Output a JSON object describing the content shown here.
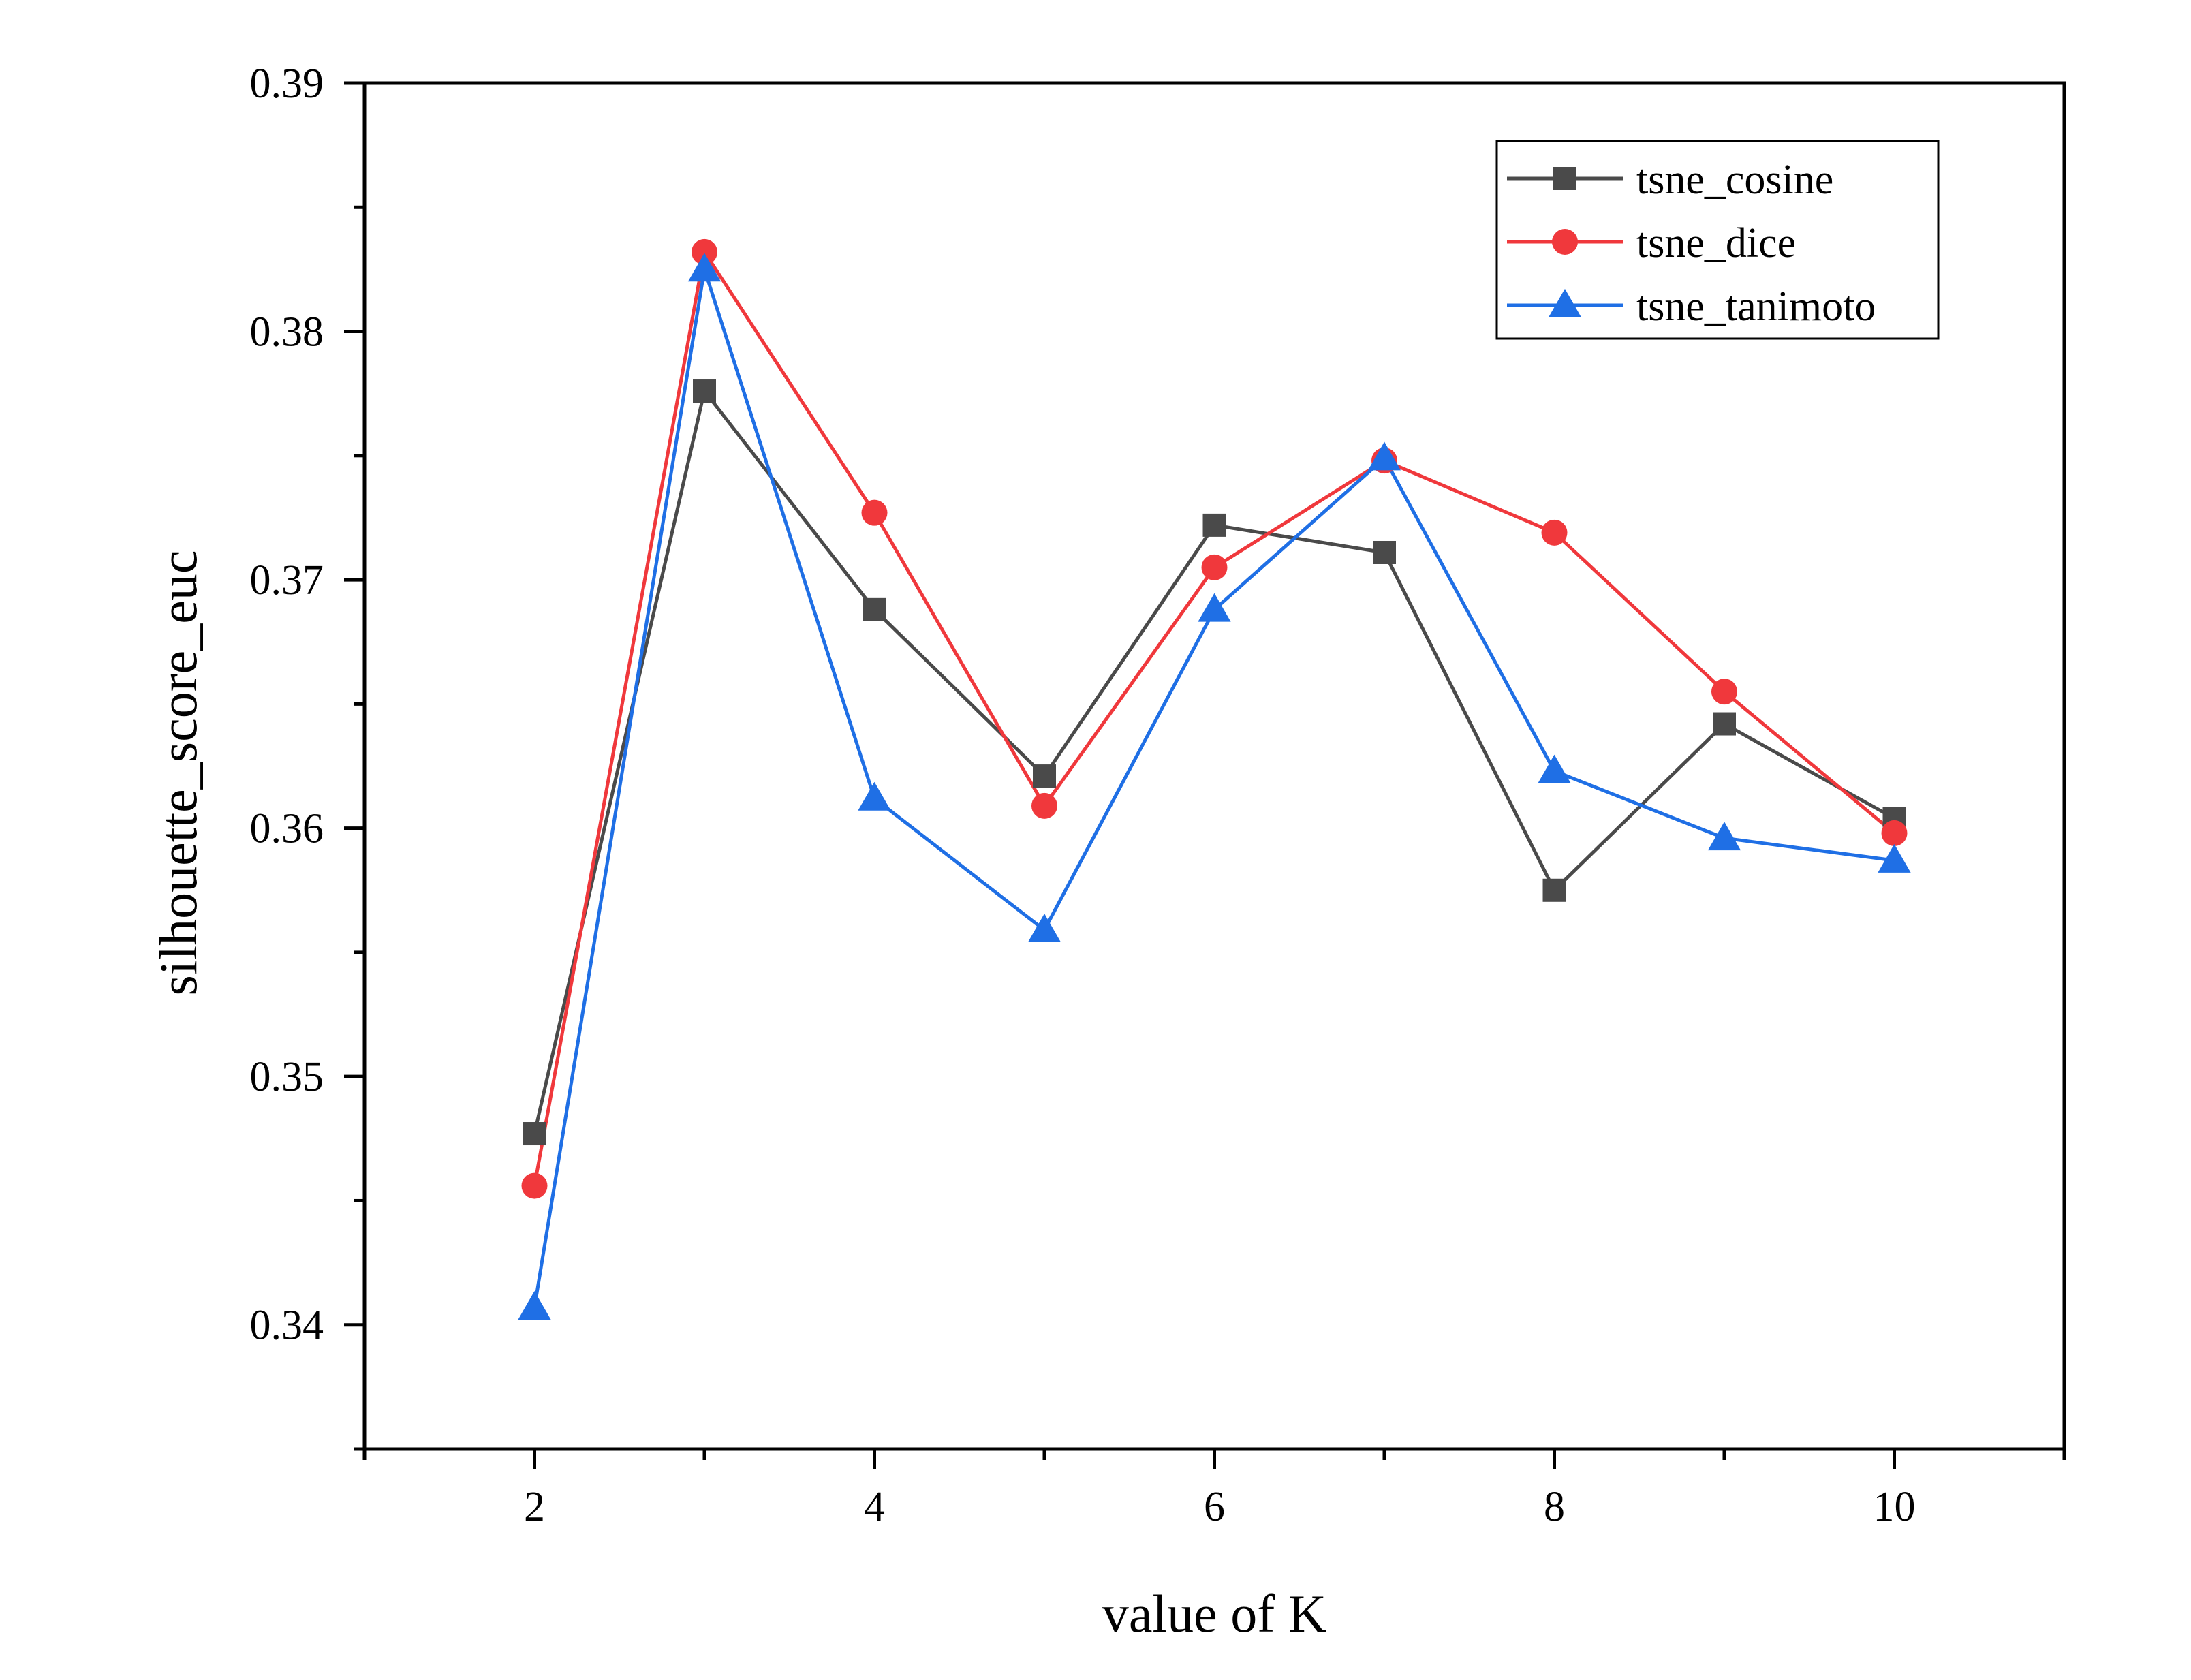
{
  "chart_data": {
    "type": "line",
    "title": "",
    "xlabel": "value of K",
    "ylabel": "silhouette_score_euc",
    "xlim": [
      1,
      11
    ],
    "ylim": [
      0.335,
      0.39
    ],
    "x_ticks": [
      2,
      4,
      6,
      8,
      10
    ],
    "y_ticks": [
      0.34,
      0.35,
      0.36,
      0.37,
      0.38,
      0.39
    ],
    "x_tick_labels": [
      "2",
      "4",
      "6",
      "8",
      "10"
    ],
    "y_tick_labels": [
      "0.34",
      "0.35",
      "0.36",
      "0.37",
      "0.38",
      "0.39"
    ],
    "x": [
      2,
      3,
      4,
      5,
      6,
      7,
      8,
      9,
      10
    ],
    "grid": false,
    "legend_position": "top-right",
    "series": [
      {
        "name": "tsne_cosine",
        "color": "#4a4a4a",
        "marker": "square",
        "values": [
          0.3477,
          0.3776,
          0.3688,
          0.3621,
          0.3722,
          0.3711,
          0.3575,
          0.3642,
          0.3604
        ]
      },
      {
        "name": "tsne_dice",
        "color": "#f0383c",
        "marker": "circle",
        "values": [
          0.3456,
          0.3832,
          0.3727,
          0.3609,
          0.3705,
          0.3748,
          0.3719,
          0.3655,
          0.3598
        ]
      },
      {
        "name": "tsne_tanimoto",
        "color": "#1f6fe5",
        "marker": "triangle",
        "values": [
          0.3407,
          0.3825,
          0.3612,
          0.3559,
          0.3688,
          0.3749,
          0.3623,
          0.3596,
          0.3587
        ]
      }
    ]
  }
}
